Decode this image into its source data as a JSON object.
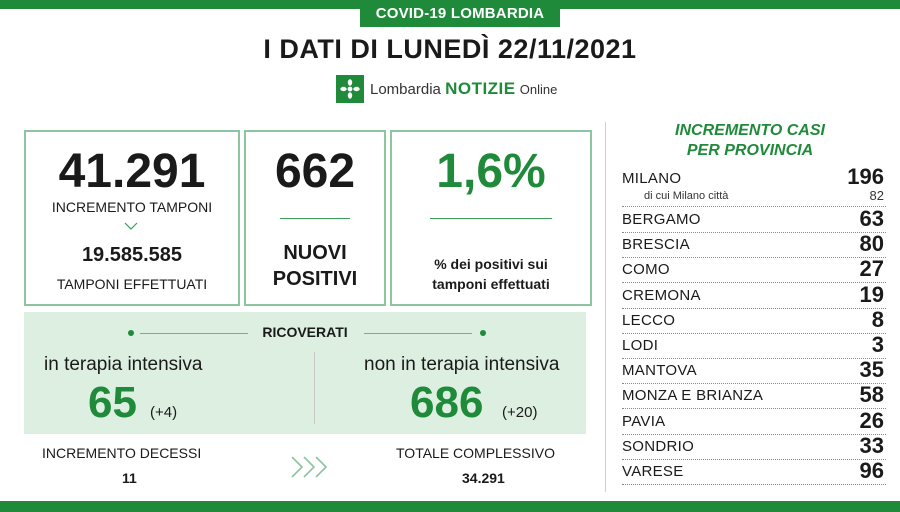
{
  "header": {
    "tab": "COVID-19 LOMBARDIA",
    "title": "I DATI DI LUNEDÌ 22/11/2021",
    "logo": {
      "part1": "Lombardia",
      "part2": "NOTIZIE",
      "part3": "Online",
      "icon": "lombardia-rose-icon"
    }
  },
  "tamponi": {
    "value": "41.291",
    "label": "INCREMENTO TAMPONI",
    "total": "19.585.585",
    "total_label": "TAMPONI EFFETTUATI"
  },
  "positivi": {
    "value": "662",
    "label_line1": "NUOVI",
    "label_line2": "POSITIVI"
  },
  "percent": {
    "value": "1,6%",
    "label_line1": "% dei positivi sui",
    "label_line2": "tamponi effettuati"
  },
  "ricoverati": {
    "title": "RICOVERATI",
    "intensiva": {
      "label": "in terapia intensiva",
      "value": "65",
      "delta": "(+4)"
    },
    "non_intensiva": {
      "label": "non in terapia intensiva",
      "value": "686",
      "delta": "(+20)"
    }
  },
  "decessi": {
    "label": "INCREMENTO DECESSI",
    "value": "11"
  },
  "totale": {
    "label": "TOTALE COMPLESSIVO",
    "value": "34.291"
  },
  "province": {
    "title_line1": "INCREMENTO CASI",
    "title_line2": "PER PROVINCIA",
    "milano": {
      "name": "MILANO",
      "value": "196",
      "sub_name": "di cui Milano città",
      "sub_value": "82"
    },
    "items": [
      {
        "name": "BERGAMO",
        "value": "63"
      },
      {
        "name": "BRESCIA",
        "value": "80"
      },
      {
        "name": "COMO",
        "value": "27"
      },
      {
        "name": "CREMONA",
        "value": "19"
      },
      {
        "name": "LECCO",
        "value": "8"
      },
      {
        "name": "LODI",
        "value": "3"
      },
      {
        "name": "MANTOVA",
        "value": "35"
      },
      {
        "name": "MONZA E BRIANZA",
        "value": "58"
      },
      {
        "name": "PAVIA",
        "value": "26"
      },
      {
        "name": "SONDRIO",
        "value": "33"
      },
      {
        "name": "VARESE",
        "value": "96"
      }
    ]
  },
  "colors": {
    "brand_green": "#1f8a3a",
    "panel_green": "#dcefe0",
    "card_border": "#8cc5a0"
  }
}
